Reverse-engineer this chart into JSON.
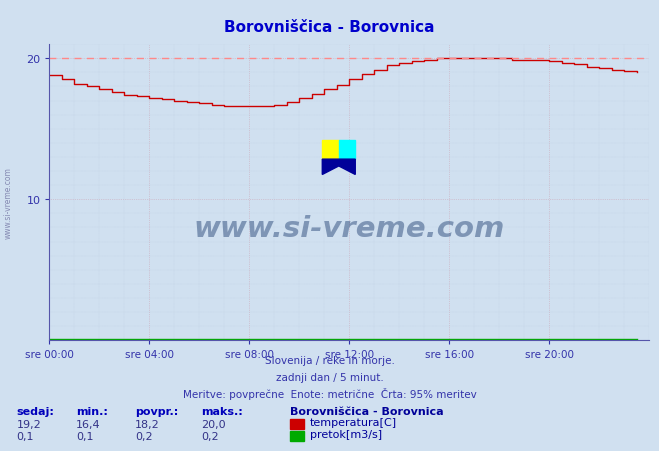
{
  "title": "Borovniščica - Borovnica",
  "title_color": "#0000cc",
  "bg_color": "#d0e0f0",
  "plot_bg_color": "#d0e0f0",
  "grid_color_major": "#9999bb",
  "grid_color_minor": "#bbbbcc",
  "xlabel_ticks": [
    "sre 00:00",
    "sre 04:00",
    "sre 08:00",
    "sre 12:00",
    "sre 16:00",
    "sre 20:00"
  ],
  "xlabel_tick_positions": [
    0,
    4,
    8,
    12,
    16,
    20
  ],
  "ylim": [
    0,
    21.0
  ],
  "xlim_hours": [
    0,
    24
  ],
  "yticks": [
    10,
    20
  ],
  "temp_color": "#cc0000",
  "flow_color": "#00aa00",
  "dashed_line_color": "#ff8888",
  "dashed_line_value": 20.0,
  "watermark_text": "www.si-vreme.com",
  "watermark_color": "#1a3a6e",
  "watermark_alpha": 0.45,
  "footer_line1": "Slovenija / reke in morje.",
  "footer_line2": "zadnji dan / 5 minut.",
  "footer_line3": "Meritve: povprečne  Enote: metrične  Črta: 95% meritev",
  "footer_color": "#3333aa",
  "legend_title": "Borovniščica - Borovnica",
  "legend_color": "#000099",
  "stats_headers": [
    "sedaj:",
    "min.:",
    "povpr.:",
    "maks.:"
  ],
  "stats_temp": [
    "19,2",
    "16,4",
    "18,2",
    "20,0"
  ],
  "stats_flow": [
    "0,1",
    "0,1",
    "0,2",
    "0,2"
  ],
  "legend_temp": "temperatura[C]",
  "legend_flow": "pretok[m3/s]",
  "temp_data_hours": [
    0.0,
    0.5,
    1.0,
    1.5,
    2.0,
    2.5,
    3.0,
    3.5,
    4.0,
    4.5,
    5.0,
    5.5,
    6.0,
    6.5,
    7.0,
    7.5,
    8.0,
    8.5,
    9.0,
    9.5,
    10.0,
    10.5,
    11.0,
    11.5,
    12.0,
    12.5,
    13.0,
    13.5,
    14.0,
    14.5,
    15.0,
    15.5,
    16.0,
    16.5,
    17.0,
    17.5,
    18.0,
    18.5,
    19.0,
    19.5,
    20.0,
    20.5,
    21.0,
    21.5,
    22.0,
    22.5,
    23.0,
    23.5
  ],
  "temp_data_values": [
    18.8,
    18.5,
    18.2,
    18.0,
    17.8,
    17.6,
    17.4,
    17.3,
    17.2,
    17.1,
    17.0,
    16.9,
    16.8,
    16.7,
    16.6,
    16.6,
    16.6,
    16.6,
    16.7,
    16.9,
    17.2,
    17.5,
    17.8,
    18.1,
    18.5,
    18.9,
    19.2,
    19.5,
    19.7,
    19.8,
    19.9,
    20.0,
    20.0,
    20.0,
    20.0,
    20.0,
    20.0,
    19.9,
    19.9,
    19.9,
    19.8,
    19.7,
    19.6,
    19.4,
    19.3,
    19.2,
    19.1,
    19.0
  ],
  "flow_data_hours": [
    0.0,
    0.5,
    1.0,
    1.5,
    2.0,
    2.5,
    3.0,
    3.5,
    4.0,
    4.5,
    5.0,
    5.5,
    6.0,
    6.5,
    7.0,
    7.5,
    8.0,
    8.5,
    9.0,
    9.5,
    10.0,
    10.5,
    11.0,
    11.5,
    12.0,
    12.5,
    13.0,
    13.5,
    14.0,
    14.5,
    15.0,
    15.5,
    16.0,
    16.5,
    17.0,
    17.5,
    18.0,
    18.5,
    19.0,
    19.5,
    20.0,
    20.5,
    21.0,
    21.5,
    22.0,
    22.5,
    23.0,
    23.5
  ],
  "flow_data_values": [
    0.1,
    0.1,
    0.1,
    0.1,
    0.1,
    0.1,
    0.1,
    0.1,
    0.1,
    0.1,
    0.1,
    0.1,
    0.1,
    0.1,
    0.1,
    0.1,
    0.1,
    0.1,
    0.1,
    0.1,
    0.1,
    0.1,
    0.1,
    0.1,
    0.1,
    0.1,
    0.1,
    0.1,
    0.1,
    0.1,
    0.1,
    0.1,
    0.1,
    0.1,
    0.1,
    0.1,
    0.1,
    0.1,
    0.1,
    0.1,
    0.1,
    0.1,
    0.1,
    0.1,
    0.1,
    0.1,
    0.1,
    0.1
  ]
}
